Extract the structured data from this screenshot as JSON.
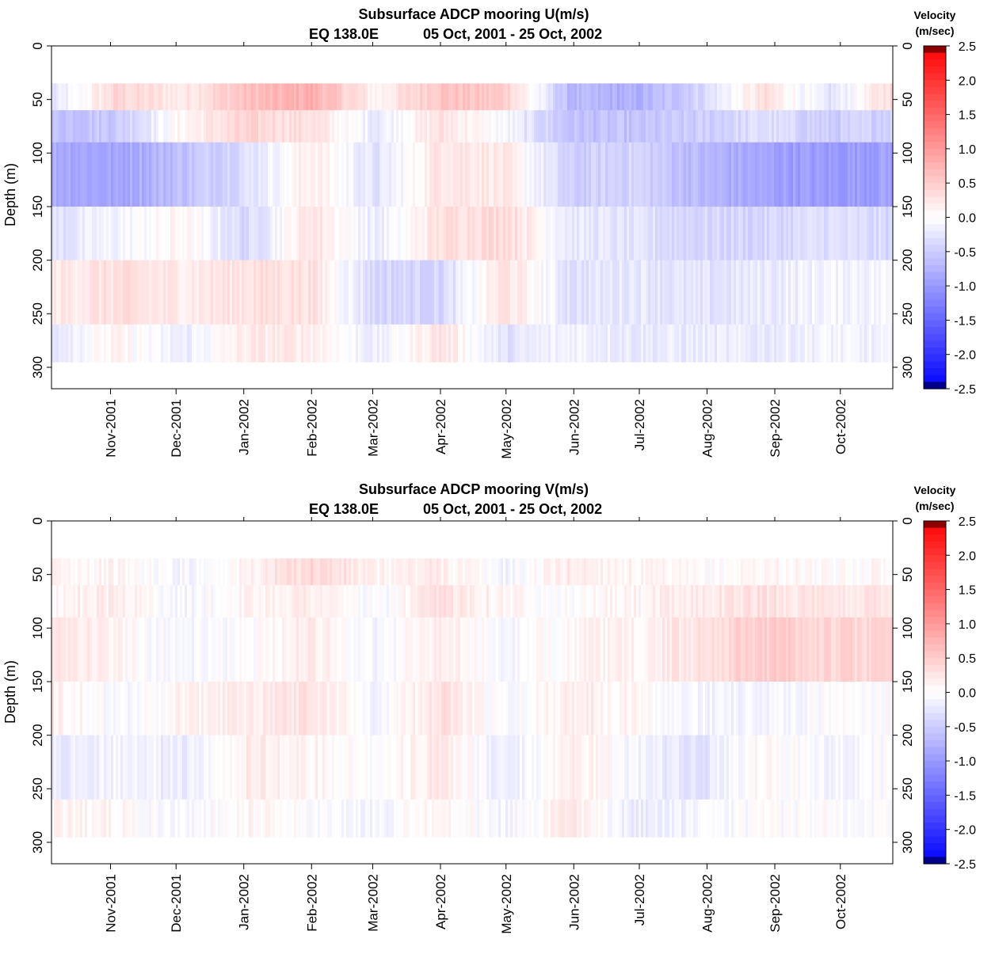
{
  "chart_data": [
    {
      "type": "heatmap",
      "title": "Subsurface ADCP mooring U(m/s)",
      "subtitle_location": "EQ 138.0E",
      "subtitle_dates": "05 Oct, 2001 - 25 Oct, 2002",
      "ylabel": "Depth (m)",
      "y_ticks": [
        "0",
        "50",
        "100",
        "150",
        "200",
        "250",
        "300"
      ],
      "ylim": [
        0,
        320
      ],
      "x_ticks": [
        "Nov-2001",
        "Dec-2001",
        "Jan-2002",
        "Feb-2002",
        "Mar-2002",
        "Apr-2002",
        "May-2002",
        "Jun-2002",
        "Jul-2002",
        "Aug-2002",
        "Sep-2002",
        "Oct-2002"
      ],
      "x_range": [
        "2001-10-05",
        "2002-10-25"
      ],
      "depth_range_measured": [
        35,
        295
      ],
      "colorbar": {
        "title_line1": "Velocity",
        "title_line2": "(m/sec)",
        "ticks": [
          "2.5",
          "2.0",
          "1.5",
          "1.0",
          "0.5",
          "0.0",
          "-0.5",
          "-1.0",
          "-1.5",
          "-2.0",
          "-2.5"
        ],
        "range": [
          -2.5,
          2.5
        ],
        "positive_color": "#ff0000",
        "negative_color": "#0000ff"
      },
      "bands": [
        {
          "depth": [
            35,
            60
          ],
          "values": [
            -0.3,
            0.4,
            0.2,
            0.6,
            0.8,
            0.1,
            0.6,
            0.5,
            -0.7,
            -0.8,
            -0.4,
            0.3,
            -0.3,
            0.4
          ]
        },
        {
          "depth": [
            60,
            90
          ],
          "values": [
            -0.6,
            -0.5,
            0.1,
            0.4,
            0.3,
            -0.2,
            0.3,
            -0.1,
            -0.6,
            -0.6,
            -0.5,
            -0.3,
            -0.5,
            -0.4
          ]
        },
        {
          "depth": [
            90,
            150
          ],
          "values": [
            -0.8,
            -0.9,
            -0.6,
            -0.3,
            0.2,
            -0.3,
            0.3,
            0.2,
            -0.5,
            -0.4,
            -0.7,
            -0.9,
            -1.0,
            -0.9
          ]
        },
        {
          "depth": [
            150,
            200
          ],
          "values": [
            -0.3,
            -0.1,
            0.1,
            -0.4,
            0.3,
            -0.2,
            0.3,
            0.4,
            -0.2,
            -0.3,
            -0.4,
            -0.4,
            -0.3,
            -0.4
          ]
        },
        {
          "depth": [
            200,
            260
          ],
          "values": [
            0.2,
            0.3,
            0.2,
            0.3,
            0.3,
            -0.4,
            -0.4,
            0.3,
            -0.3,
            -0.2,
            -0.3,
            -0.2,
            -0.1,
            -0.1
          ]
        },
        {
          "depth": [
            260,
            295
          ],
          "values": [
            -0.2,
            0.1,
            -0.2,
            0.2,
            0.2,
            -0.2,
            0.3,
            -0.3,
            -0.1,
            -0.2,
            -0.2,
            -0.2,
            -0.1,
            -0.2
          ]
        }
      ]
    },
    {
      "type": "heatmap",
      "title": "Subsurface ADCP mooring V(m/s)",
      "subtitle_location": "EQ 138.0E",
      "subtitle_dates": "05 Oct, 2001 - 25 Oct, 2002",
      "ylabel": "Depth (m)",
      "y_ticks": [
        "0",
        "50",
        "100",
        "150",
        "200",
        "250",
        "300"
      ],
      "ylim": [
        0,
        320
      ],
      "x_ticks": [
        "Nov-2001",
        "Dec-2001",
        "Jan-2002",
        "Feb-2002",
        "Mar-2002",
        "Apr-2002",
        "May-2002",
        "Jun-2002",
        "Jul-2002",
        "Aug-2002",
        "Sep-2002",
        "Oct-2002"
      ],
      "x_range": [
        "2001-10-05",
        "2002-10-25"
      ],
      "depth_range_measured": [
        35,
        295
      ],
      "colorbar": {
        "title_line1": "Velocity",
        "title_line2": "(m/sec)",
        "ticks": [
          "2.5",
          "2.0",
          "1.5",
          "1.0",
          "0.5",
          "0.0",
          "-0.5",
          "-1.0",
          "-1.5",
          "-2.0",
          "-2.5"
        ],
        "range": [
          -2.5,
          2.5
        ],
        "positive_color": "#ff0000",
        "negative_color": "#0000ff"
      },
      "bands": [
        {
          "depth": [
            35,
            60
          ],
          "values": [
            0.1,
            0.1,
            -0.1,
            0.1,
            0.4,
            0.1,
            0.2,
            -0.1,
            0.2,
            0.1,
            0.0,
            0.1,
            0.0,
            0.1
          ]
        },
        {
          "depth": [
            60,
            90
          ],
          "values": [
            0.1,
            0.2,
            -0.1,
            0.1,
            0.2,
            -0.1,
            0.3,
            0.1,
            0.0,
            0.1,
            0.2,
            0.3,
            0.2,
            0.3
          ]
        },
        {
          "depth": [
            90,
            150
          ],
          "values": [
            0.3,
            0.1,
            -0.1,
            0.0,
            0.2,
            -0.1,
            0.2,
            -0.1,
            0.1,
            0.1,
            0.3,
            0.5,
            0.4,
            0.4
          ]
        },
        {
          "depth": [
            150,
            200
          ],
          "values": [
            0.2,
            -0.1,
            0.1,
            0.2,
            0.3,
            -0.1,
            0.3,
            -0.1,
            0.2,
            0.1,
            -0.1,
            -0.1,
            0.0,
            0.0
          ]
        },
        {
          "depth": [
            200,
            260
          ],
          "values": [
            -0.2,
            -0.1,
            -0.2,
            0.2,
            0.1,
            0.0,
            0.2,
            -0.2,
            0.2,
            -0.1,
            -0.3,
            0.1,
            -0.1,
            0.0
          ]
        },
        {
          "depth": [
            260,
            295
          ],
          "values": [
            0.1,
            0.1,
            -0.1,
            0.1,
            0.0,
            -0.1,
            0.1,
            -0.1,
            0.2,
            -0.2,
            -0.1,
            0.0,
            0.0,
            0.0
          ]
        }
      ]
    }
  ]
}
